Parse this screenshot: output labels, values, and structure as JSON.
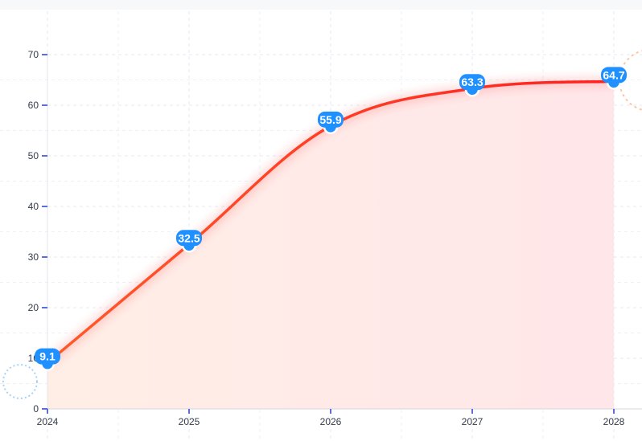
{
  "chart_data": {
    "type": "area",
    "categories": [
      "2024",
      "2025",
      "2026",
      "2027",
      "2028"
    ],
    "values": [
      9.1,
      32.5,
      55.9,
      63.3,
      64.7
    ],
    "data_labels": [
      "9.1",
      "32.5",
      "55.9",
      "63.3",
      "64.7"
    ],
    "y_ticks": [
      "0",
      "10",
      "20",
      "30",
      "40",
      "50",
      "60",
      "70"
    ],
    "ylim": [
      0,
      70
    ],
    "grid": true,
    "smooth": true,
    "title": "",
    "xlabel": "",
    "ylabel": "",
    "colors": {
      "line_start": "#ff5a2a",
      "line_end": "#ff2020",
      "area_start": "#ffeee6",
      "area_end": "#ffe6e9",
      "marker": "#1e90ff",
      "axis_tick": "#5b6ee0",
      "grid": "#e6eaf0",
      "decor_left": "#a8d3f5",
      "decor_right": "#ffc4a6"
    }
  }
}
